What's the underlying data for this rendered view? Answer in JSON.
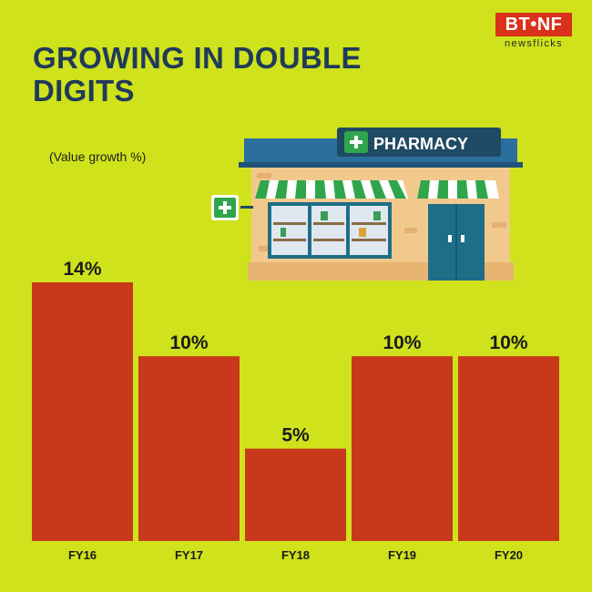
{
  "title": "GROWING IN DOUBLE DIGITS",
  "logo": {
    "text": "BT•NF",
    "subtext": "newsflicks"
  },
  "illustration": {
    "sign_text": "PHARMACY",
    "icon": "pharmacy-store-illustration"
  },
  "colors": {
    "background": "#cfe21b",
    "bar": "#c7391a",
    "title": "#1f3a5a",
    "brand": "#d9311a"
  },
  "chart_data": {
    "type": "bar",
    "title": "GROWING IN DOUBLE DIGITS",
    "ylabel": "(Value growth %)",
    "xlabel": "",
    "categories": [
      "FY16",
      "FY17",
      "FY18",
      "FY19",
      "FY20"
    ],
    "values": [
      14,
      10,
      5,
      10,
      10
    ],
    "value_labels": [
      "14%",
      "10%",
      "5%",
      "10%",
      "10%"
    ],
    "ylim": [
      0,
      14
    ],
    "grid": false
  }
}
